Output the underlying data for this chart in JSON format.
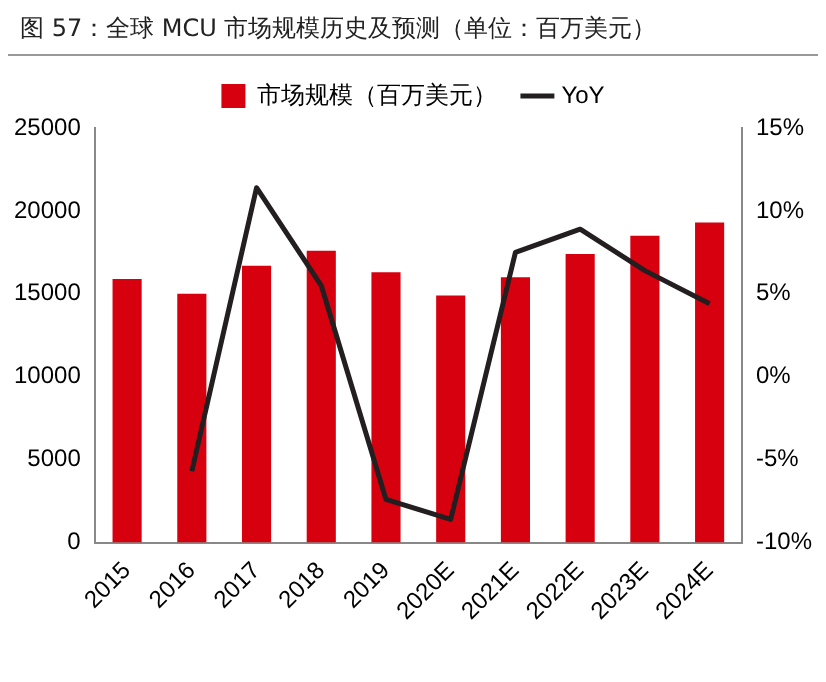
{
  "chart_data": {
    "type": "bar",
    "title": "图 57：全球 MCU 市场规模历史及预测（单位：百万美元）",
    "categories": [
      "2015",
      "2016",
      "2017",
      "2018",
      "2019",
      "2020E",
      "2021E",
      "2022E",
      "2023E",
      "2024E"
    ],
    "series": [
      {
        "name": "市场规模（百万美元）",
        "color": "#d7000f",
        "values": [
          15900,
          15000,
          16700,
          17600,
          16300,
          14900,
          16000,
          17400,
          18500,
          19300
        ]
      },
      {
        "name": "YoY",
        "type": "line",
        "axis": "y2",
        "color": "#231f20",
        "values": [
          null,
          -5.7,
          11.4,
          5.5,
          -7.4,
          -8.6,
          7.5,
          8.9,
          6.4,
          4.4
        ]
      }
    ],
    "ylim": [
      0,
      25000
    ],
    "yticks": [
      0,
      5000,
      10000,
      15000,
      20000,
      25000
    ],
    "y2lim": [
      -10,
      15
    ],
    "y2ticks": [
      {
        "value": -10,
        "label": "-10%"
      },
      {
        "value": -5,
        "label": "-5%"
      },
      {
        "value": 0,
        "label": "0%"
      },
      {
        "value": 5,
        "label": "5%"
      },
      {
        "value": 10,
        "label": "10%"
      },
      {
        "value": 15,
        "label": "15%"
      }
    ],
    "grid": false,
    "legend": "top",
    "marker": "none",
    "line_style": "solid"
  }
}
